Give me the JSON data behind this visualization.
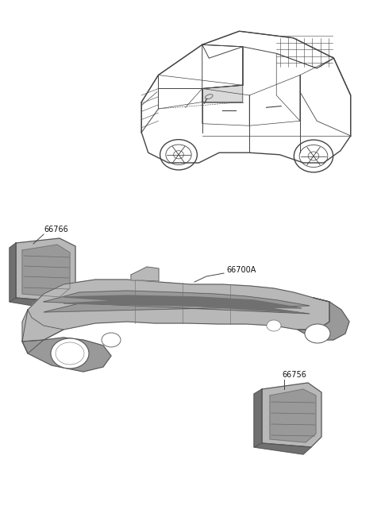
{
  "background_color": "#ffffff",
  "fig_width": 4.8,
  "fig_height": 6.56,
  "dpi": 100,
  "line_color": "#444444",
  "gray_light": "#b8b8b8",
  "gray_mid": "#999999",
  "gray_dark": "#707070",
  "gray_darker": "#555555",
  "label_66766": "66766",
  "label_66700A": "66700A",
  "label_66756": "66756",
  "font_size": 7
}
